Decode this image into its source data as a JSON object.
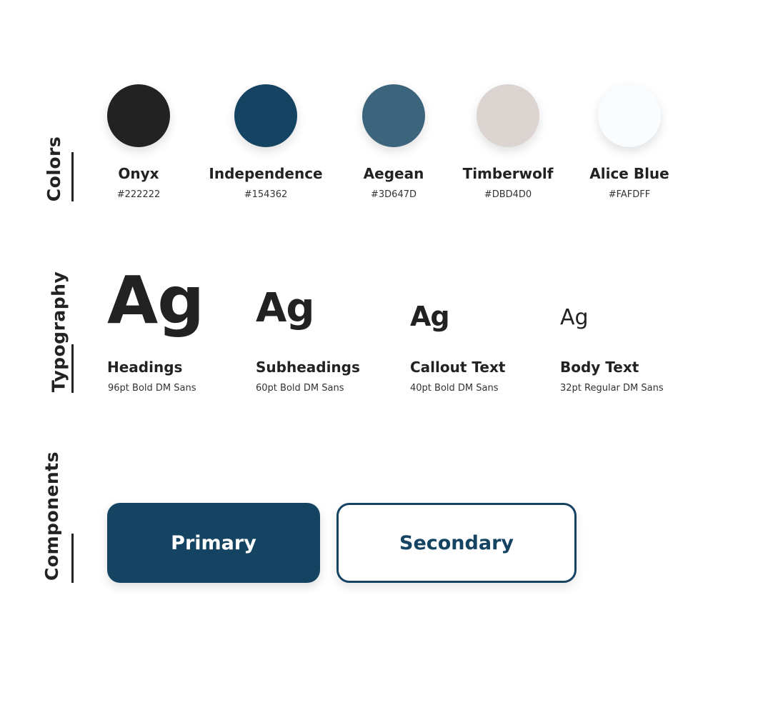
{
  "sections": {
    "colors": "Colors",
    "typography": "Typography",
    "components": "Components"
  },
  "colors": [
    {
      "name": "Onyx",
      "hex": "#222222"
    },
    {
      "name": "Independence",
      "hex": "#154362"
    },
    {
      "name": "Aegean",
      "hex": "#3D647D"
    },
    {
      "name": "Timberwolf",
      "hex": "#DBD4D0"
    },
    {
      "name": "Alice Blue",
      "hex": "#FAFDFF"
    }
  ],
  "typography": [
    {
      "sample": "Ag",
      "name": "Headings",
      "spec": "96pt Bold DM Sans"
    },
    {
      "sample": "Ag",
      "name": "Subheadings",
      "spec": "60pt Bold DM Sans"
    },
    {
      "sample": "Ag",
      "name": "Callout Text",
      "spec": "40pt Bold DM Sans"
    },
    {
      "sample": "Ag",
      "name": "Body Text",
      "spec": "32pt Regular DM Sans"
    }
  ],
  "components": {
    "primary_label": "Primary",
    "secondary_label": "Secondary"
  }
}
